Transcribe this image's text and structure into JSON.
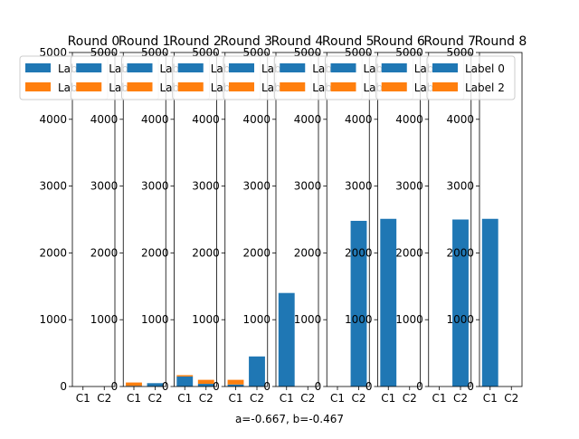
{
  "figure": {
    "caption": "a=-0.667, b=-0.467"
  },
  "colors": {
    "label0": "#1f77b4",
    "label2": "#ff7f0e"
  },
  "chart_data": {
    "type": "bar",
    "stacked": true,
    "categories": [
      "C1",
      "C2"
    ],
    "ylim": [
      0,
      5000
    ],
    "yticks": [
      0,
      1000,
      2000,
      3000,
      4000,
      5000
    ],
    "legend_position": "top-left",
    "legend_labels": [
      "Label 0",
      "Label 2"
    ],
    "panels": [
      {
        "title": "Round 0",
        "series": [
          {
            "name": "Label 0",
            "values": [
              0,
              0
            ]
          },
          {
            "name": "Label 2",
            "values": [
              0,
              0
            ]
          }
        ]
      },
      {
        "title": "Round 1",
        "series": [
          {
            "name": "Label 0",
            "values": [
              10,
              50
            ]
          },
          {
            "name": "Label 2",
            "values": [
              50,
              0
            ]
          }
        ]
      },
      {
        "title": "Round 2",
        "series": [
          {
            "name": "Label 0",
            "values": [
              150,
              40
            ]
          },
          {
            "name": "Label 2",
            "values": [
              20,
              60
            ]
          }
        ]
      },
      {
        "title": "Round 3",
        "series": [
          {
            "name": "Label 0",
            "values": [
              30,
              450
            ]
          },
          {
            "name": "Label 2",
            "values": [
              70,
              0
            ]
          }
        ]
      },
      {
        "title": "Round 4",
        "series": [
          {
            "name": "Label 0",
            "values": [
              1400,
              0
            ]
          },
          {
            "name": "Label 2",
            "values": [
              0,
              0
            ]
          }
        ]
      },
      {
        "title": "Round 5",
        "series": [
          {
            "name": "Label 0",
            "values": [
              0,
              2480
            ]
          },
          {
            "name": "Label 2",
            "values": [
              0,
              0
            ]
          }
        ]
      },
      {
        "title": "Round 6",
        "series": [
          {
            "name": "Label 0",
            "values": [
              2510,
              0
            ]
          },
          {
            "name": "Label 2",
            "values": [
              0,
              0
            ]
          }
        ]
      },
      {
        "title": "Round 7",
        "series": [
          {
            "name": "Label 0",
            "values": [
              0,
              2500
            ]
          },
          {
            "name": "Label 2",
            "values": [
              0,
              0
            ]
          }
        ]
      },
      {
        "title": "Round 8",
        "series": [
          {
            "name": "Label 0",
            "values": [
              2510,
              0
            ]
          },
          {
            "name": "Label 2",
            "values": [
              0,
              0
            ]
          }
        ]
      }
    ]
  }
}
